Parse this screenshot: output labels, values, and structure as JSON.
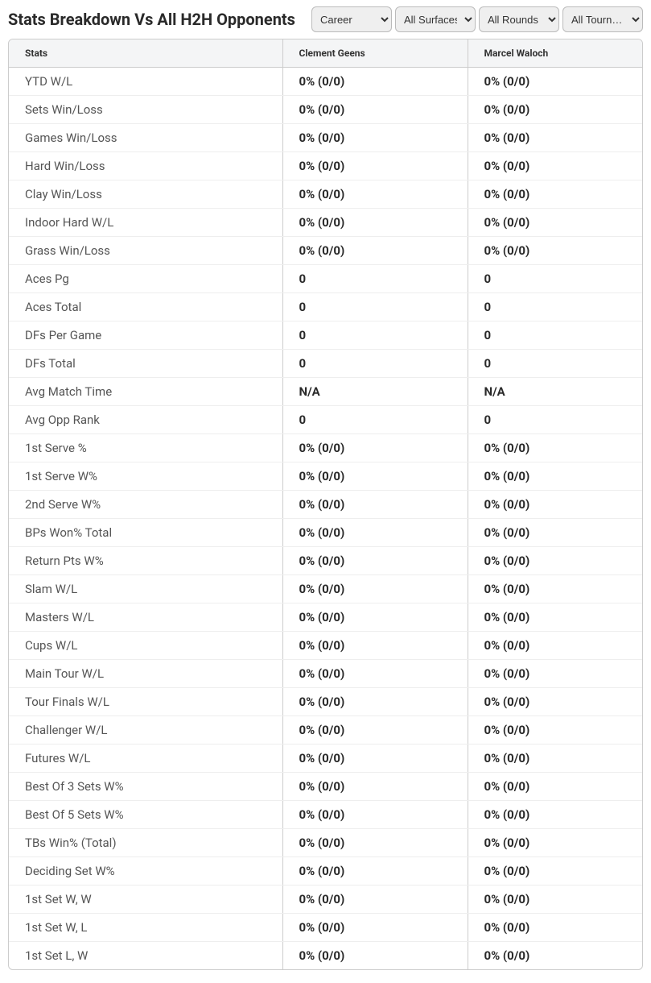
{
  "title": "Stats Breakdown Vs All H2H Opponents",
  "filters": {
    "career": "Career",
    "surfaces": "All Surfaces",
    "rounds": "All Rounds",
    "tourn": "All Tourn…"
  },
  "columns": {
    "stats": "Stats",
    "player1": "Clement Geens",
    "player2": "Marcel Waloch"
  },
  "rows": [
    {
      "label": "YTD W/L",
      "p1": "0% (0/0)",
      "p2": "0% (0/0)"
    },
    {
      "label": "Sets Win/Loss",
      "p1": "0% (0/0)",
      "p2": "0% (0/0)"
    },
    {
      "label": "Games Win/Loss",
      "p1": "0% (0/0)",
      "p2": "0% (0/0)"
    },
    {
      "label": "Hard Win/Loss",
      "p1": "0% (0/0)",
      "p2": "0% (0/0)"
    },
    {
      "label": "Clay Win/Loss",
      "p1": "0% (0/0)",
      "p2": "0% (0/0)"
    },
    {
      "label": "Indoor Hard W/L",
      "p1": "0% (0/0)",
      "p2": "0% (0/0)"
    },
    {
      "label": "Grass Win/Loss",
      "p1": "0% (0/0)",
      "p2": "0% (0/0)"
    },
    {
      "label": "Aces Pg",
      "p1": "0",
      "p2": "0"
    },
    {
      "label": "Aces Total",
      "p1": "0",
      "p2": "0"
    },
    {
      "label": "DFs Per Game",
      "p1": "0",
      "p2": "0"
    },
    {
      "label": "DFs Total",
      "p1": "0",
      "p2": "0"
    },
    {
      "label": "Avg Match Time",
      "p1": "N/A",
      "p2": "N/A"
    },
    {
      "label": "Avg Opp Rank",
      "p1": "0",
      "p2": "0"
    },
    {
      "label": "1st Serve %",
      "p1": "0% (0/0)",
      "p2": "0% (0/0)"
    },
    {
      "label": "1st Serve W%",
      "p1": "0% (0/0)",
      "p2": "0% (0/0)"
    },
    {
      "label": "2nd Serve W%",
      "p1": "0% (0/0)",
      "p2": "0% (0/0)"
    },
    {
      "label": "BPs Won% Total",
      "p1": "0% (0/0)",
      "p2": "0% (0/0)"
    },
    {
      "label": "Return Pts W%",
      "p1": "0% (0/0)",
      "p2": "0% (0/0)"
    },
    {
      "label": "Slam W/L",
      "p1": "0% (0/0)",
      "p2": "0% (0/0)"
    },
    {
      "label": "Masters W/L",
      "p1": "0% (0/0)",
      "p2": "0% (0/0)"
    },
    {
      "label": "Cups W/L",
      "p1": "0% (0/0)",
      "p2": "0% (0/0)"
    },
    {
      "label": "Main Tour W/L",
      "p1": "0% (0/0)",
      "p2": "0% (0/0)"
    },
    {
      "label": "Tour Finals W/L",
      "p1": "0% (0/0)",
      "p2": "0% (0/0)"
    },
    {
      "label": "Challenger W/L",
      "p1": "0% (0/0)",
      "p2": "0% (0/0)"
    },
    {
      "label": "Futures W/L",
      "p1": "0% (0/0)",
      "p2": "0% (0/0)"
    },
    {
      "label": "Best Of 3 Sets W%",
      "p1": "0% (0/0)",
      "p2": "0% (0/0)"
    },
    {
      "label": "Best Of 5 Sets W%",
      "p1": "0% (0/0)",
      "p2": "0% (0/0)"
    },
    {
      "label": "TBs Win% (Total)",
      "p1": "0% (0/0)",
      "p2": "0% (0/0)"
    },
    {
      "label": "Deciding Set W%",
      "p1": "0% (0/0)",
      "p2": "0% (0/0)"
    },
    {
      "label": "1st Set W, W",
      "p1": "0% (0/0)",
      "p2": "0% (0/0)"
    },
    {
      "label": "1st Set W, L",
      "p1": "0% (0/0)",
      "p2": "0% (0/0)"
    },
    {
      "label": "1st Set L, W",
      "p1": "0% (0/0)",
      "p2": "0% (0/0)"
    }
  ]
}
